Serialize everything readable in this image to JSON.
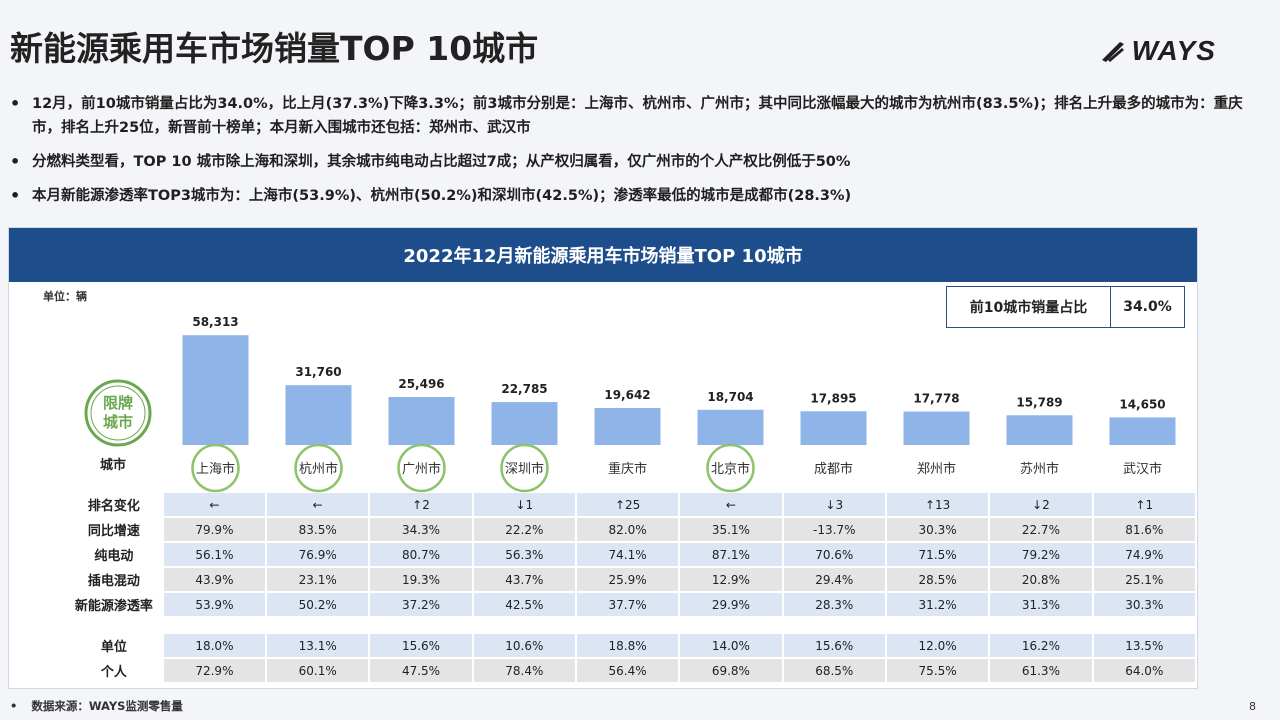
{
  "title": "新能源乘用车市场销量TOP 10城市",
  "logo": "WAYS",
  "bullets": [
    "12月，前10城市销量占比为34.0%，比上月(37.3%)下降3.3%；前3城市分别是：上海市、杭州市、广州市；其中同比涨幅最大的城市为杭州市(83.5%)；排名上升最多的城市为：重庆市，排名上升25位，新晋前十榜单；本月新入围城市还包括：郑州市、武汉市",
    "分燃料类型看，TOP 10 城市除上海和深圳，其余城市纯电动占比超过7成；从产权归属看，仅广州市的个人产权比例低于50%",
    "本月新能源渗透率TOP3城市为：上海市(53.9%)、杭州市(50.2%)和深圳市(42.5%)；渗透率最低的城市是成都市(28.3%)"
  ],
  "panel": {
    "title": "2022年12月新能源乘用车市场销量TOP 10城市",
    "unit": "单位：辆",
    "share_label": "前10城市销量占比",
    "share_value": "34.0%",
    "limit_badge_line1": "限牌",
    "limit_badge_line2": "城市",
    "city_row_label": "城市"
  },
  "chart_data": {
    "type": "bar",
    "categories": [
      "上海市",
      "杭州市",
      "广州市",
      "深圳市",
      "重庆市",
      "北京市",
      "成都市",
      "郑州市",
      "苏州市",
      "武汉市"
    ],
    "values": [
      58313,
      31760,
      25496,
      22785,
      19642,
      18704,
      17895,
      17778,
      15789,
      14650
    ],
    "value_labels": [
      "58,313",
      "31,760",
      "25,496",
      "22,785",
      "19,642",
      "18,704",
      "17,895",
      "17,778",
      "15,789",
      "14,650"
    ],
    "limit_cities": [
      "上海市",
      "杭州市",
      "广州市",
      "深圳市",
      "北京市"
    ],
    "bar_color": "#8eb4e8",
    "ylim": [
      0,
      60000
    ]
  },
  "table": [
    {
      "label": "排名变化",
      "style": "blue",
      "cells": [
        "←",
        "←",
        "↑2",
        "↓1",
        "↑25",
        "←",
        "↓3",
        "↑13",
        "↓2",
        "↑1"
      ]
    },
    {
      "label": "同比增速",
      "style": "gray",
      "cells": [
        "79.9%",
        "83.5%",
        "34.3%",
        "22.2%",
        "82.0%",
        "35.1%",
        "-13.7%",
        "30.3%",
        "22.7%",
        "81.6%"
      ]
    },
    {
      "label": "纯电动",
      "style": "blue",
      "cells": [
        "56.1%",
        "76.9%",
        "80.7%",
        "56.3%",
        "74.1%",
        "87.1%",
        "70.6%",
        "71.5%",
        "79.2%",
        "74.9%"
      ]
    },
    {
      "label": "插电混动",
      "style": "gray",
      "cells": [
        "43.9%",
        "23.1%",
        "19.3%",
        "43.7%",
        "25.9%",
        "12.9%",
        "29.4%",
        "28.5%",
        "20.8%",
        "25.1%"
      ]
    },
    {
      "label": "新能源渗透率",
      "style": "blue",
      "cells": [
        "53.9%",
        "50.2%",
        "37.2%",
        "42.5%",
        "37.7%",
        "29.9%",
        "28.3%",
        "31.2%",
        "31.3%",
        "30.3%"
      ]
    },
    {
      "label": "单位",
      "style": "blue",
      "cells": [
        "18.0%",
        "13.1%",
        "15.6%",
        "10.6%",
        "18.8%",
        "14.0%",
        "15.6%",
        "12.0%",
        "16.2%",
        "13.5%"
      ]
    },
    {
      "label": "个人",
      "style": "gray",
      "cells": [
        "72.9%",
        "60.1%",
        "47.5%",
        "78.4%",
        "56.4%",
        "69.8%",
        "68.5%",
        "75.5%",
        "61.3%",
        "64.0%"
      ]
    }
  ],
  "source": "数据来源：WAYS监测零售量",
  "page_number": "8",
  "colors": {
    "header": "#1e4d8c",
    "badge_green": "#6aa84f"
  }
}
